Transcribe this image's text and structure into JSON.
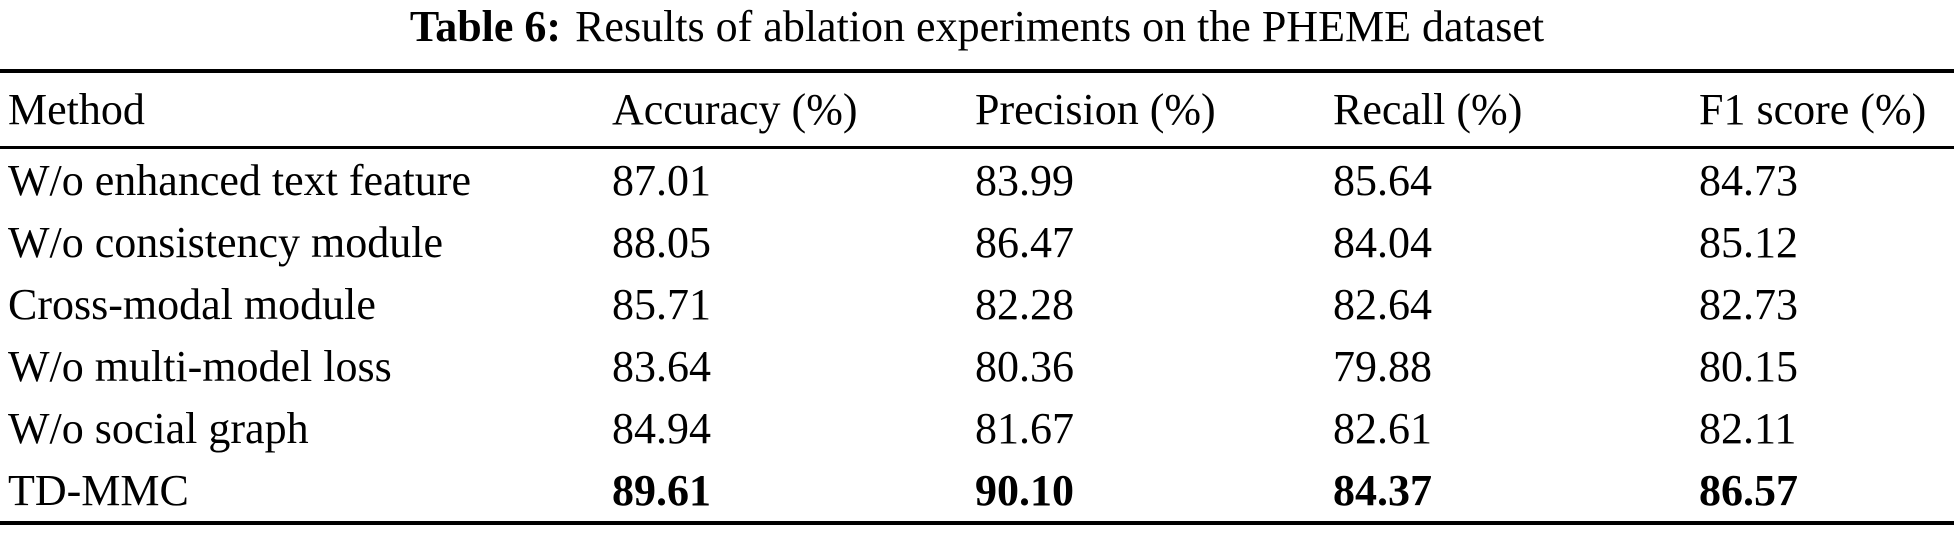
{
  "caption": {
    "label": "Table 6:",
    "text": "Results of ablation experiments on the PHEME dataset"
  },
  "table": {
    "columns": [
      "Method",
      "Accuracy (%)",
      "Precision (%)",
      "Recall (%)",
      "F1 score (%)"
    ],
    "rows": [
      {
        "method": "W/o enhanced text feature",
        "values": [
          "87.01",
          "83.99",
          "85.64",
          "84.73"
        ],
        "values_bold": false
      },
      {
        "method": "W/o consistency module",
        "values": [
          "88.05",
          "86.47",
          "84.04",
          "85.12"
        ],
        "values_bold": false
      },
      {
        "method": "Cross-modal module",
        "values": [
          "85.71",
          "82.28",
          "82.64",
          "82.73"
        ],
        "values_bold": false
      },
      {
        "method": "W/o multi-model loss",
        "values": [
          "83.64",
          "80.36",
          "79.88",
          "80.15"
        ],
        "values_bold": false
      },
      {
        "method": "W/o social graph",
        "values": [
          "84.94",
          "81.67",
          "82.61",
          "82.11"
        ],
        "values_bold": false
      },
      {
        "method": "TD-MMC",
        "values": [
          "89.61",
          "90.10",
          "84.37",
          "86.57"
        ],
        "values_bold": true
      }
    ]
  },
  "colors": {
    "text": "#000000",
    "background": "#ffffff",
    "rule": "#000000"
  }
}
